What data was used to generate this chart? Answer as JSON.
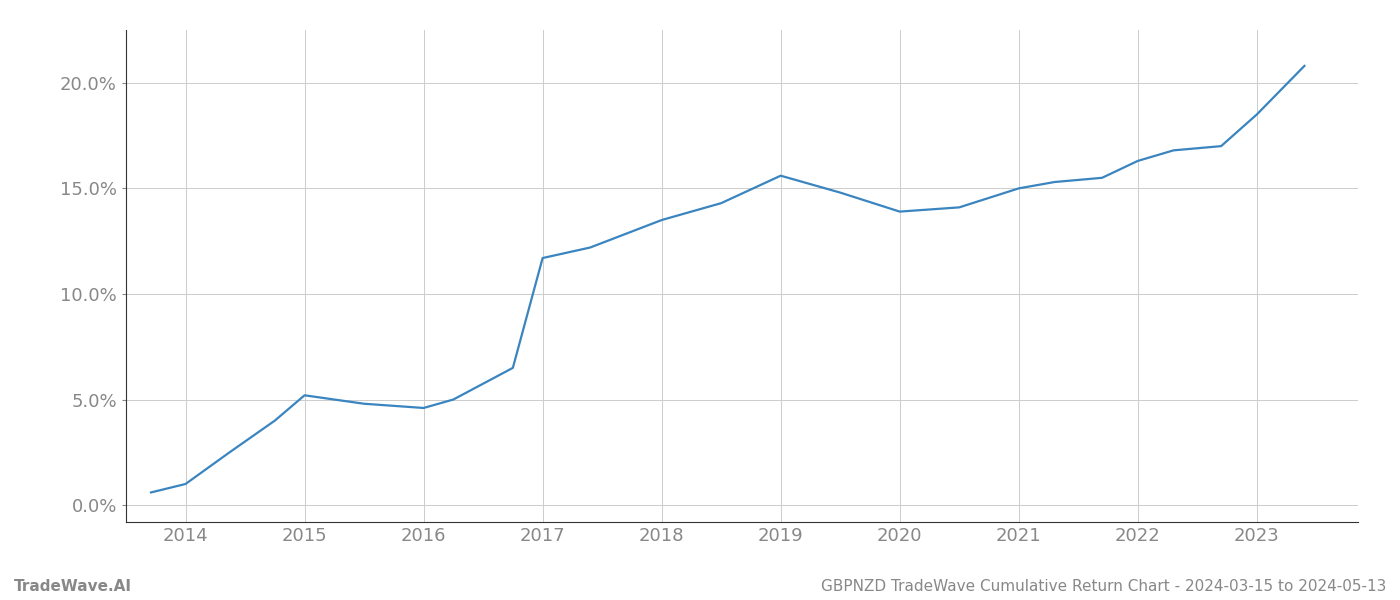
{
  "x_years": [
    2013.71,
    2014.0,
    2014.37,
    2014.75,
    2015.0,
    2015.5,
    2016.0,
    2016.25,
    2016.75,
    2017.0,
    2017.4,
    2018.0,
    2018.5,
    2019.0,
    2019.5,
    2020.0,
    2020.5,
    2021.0,
    2021.3,
    2021.7,
    2022.0,
    2022.3,
    2022.7,
    2023.0,
    2023.4
  ],
  "y_values": [
    0.006,
    0.01,
    0.025,
    0.04,
    0.052,
    0.048,
    0.046,
    0.05,
    0.065,
    0.117,
    0.122,
    0.135,
    0.143,
    0.156,
    0.148,
    0.139,
    0.141,
    0.15,
    0.153,
    0.155,
    0.163,
    0.168,
    0.17,
    0.185,
    0.208
  ],
  "line_color": "#3a85c0",
  "line_width": 1.6,
  "background_color": "#ffffff",
  "grid_color": "#cccccc",
  "x_ticks": [
    2014,
    2015,
    2016,
    2017,
    2018,
    2019,
    2020,
    2021,
    2022,
    2023
  ],
  "y_ticks": [
    0.0,
    0.05,
    0.1,
    0.15,
    0.2
  ],
  "y_tick_labels": [
    "0.0%",
    "5.0%",
    "10.0%",
    "15.0%",
    "20.0%"
  ],
  "xlim": [
    2013.5,
    2023.85
  ],
  "ylim": [
    -0.008,
    0.225
  ],
  "footer_left": "TradeWave.AI",
  "footer_right": "GBPNZD TradeWave Cumulative Return Chart - 2024-03-15 to 2024-05-13",
  "footer_color": "#888888",
  "footer_fontsize": 11,
  "axis_label_color": "#888888",
  "tick_fontsize": 13,
  "left_spine_color": "#333333",
  "bottom_spine_color": "#333333"
}
